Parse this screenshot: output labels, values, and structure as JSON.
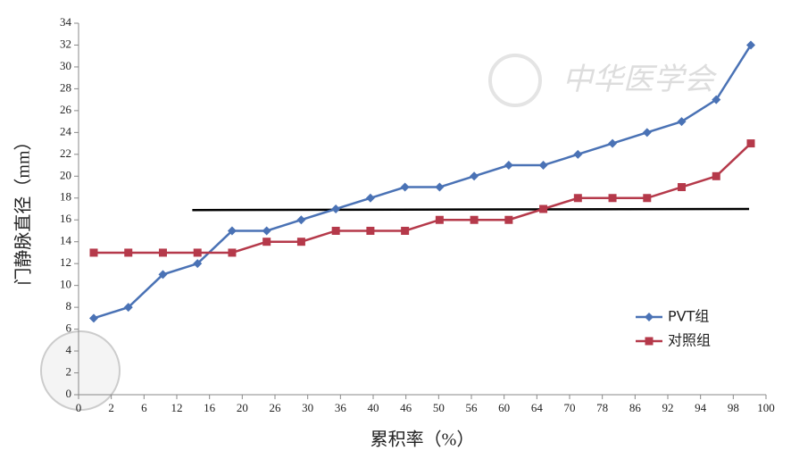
{
  "chart_data": {
    "type": "line",
    "y_label": "门静脉直径（mm）",
    "x_label": "累积率（%）",
    "watermark": "中华医学会",
    "x_tick_labels": [
      "0",
      "2",
      "6",
      "12",
      "16",
      "20",
      "26",
      "30",
      "36",
      "40",
      "46",
      "50",
      "56",
      "60",
      "64",
      "70",
      "78",
      "86",
      "92",
      "94",
      "98",
      "100"
    ],
    "series": [
      {
        "name": "PVT组",
        "color": "#4a72b5",
        "marker": "diamond",
        "values": [
          7,
          8,
          11,
          12,
          15,
          15,
          16,
          17,
          18,
          19,
          19,
          20,
          21,
          21,
          22,
          23,
          24,
          25,
          27,
          32
        ]
      },
      {
        "name": "对照组",
        "color": "#b5394a",
        "marker": "square",
        "values": [
          13,
          13,
          13,
          13,
          13,
          14,
          14,
          15,
          15,
          15,
          16,
          16,
          16,
          17,
          18,
          18,
          18,
          19,
          20,
          23
        ]
      }
    ],
    "reference_line": {
      "color": "#000000",
      "values": [
        16.9,
        17
      ]
    },
    "ylim": [
      0,
      34
    ],
    "yticks": [
      0,
      2,
      4,
      6,
      8,
      10,
      12,
      14,
      16,
      18,
      20,
      22,
      24,
      26,
      28,
      30,
      32,
      34
    ],
    "legend": "right"
  }
}
